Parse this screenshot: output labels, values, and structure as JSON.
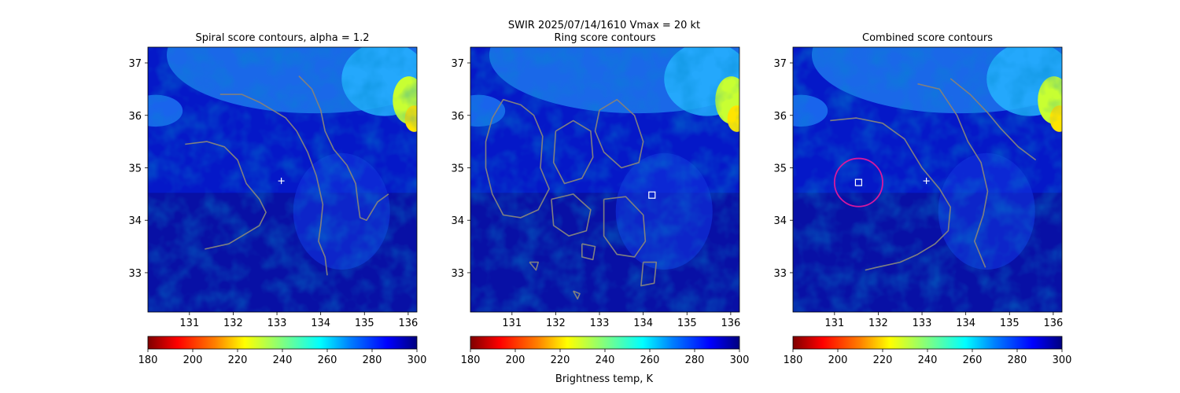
{
  "figure": {
    "suptitle_line1": "SWIR  2025/07/14/1610    Vmax = 20 kt",
    "colorbar_label": "Brightness temp, K"
  },
  "colors": {
    "contour": "#808080",
    "marker": "#ffffff",
    "circle": "#d6189e",
    "colormap": [
      "#7f0000",
      "#ff0000",
      "#ff8000",
      "#ffff00",
      "#80ff80",
      "#00ffff",
      "#0080ff",
      "#0000ff",
      "#00007f"
    ]
  },
  "chart_data": [
    {
      "type": "heatmap",
      "title": "Spiral score contours, alpha =  1.2",
      "xlabel": "",
      "ylabel": "",
      "xlim": [
        130.05,
        136.2
      ],
      "ylim": [
        32.25,
        37.3
      ],
      "xticks": [
        131,
        132,
        133,
        134,
        135,
        136
      ],
      "yticks": [
        33,
        34,
        35,
        36,
        37
      ],
      "colorbar": {
        "range": [
          180,
          300
        ],
        "ticks": [
          180,
          200,
          220,
          240,
          260,
          280,
          300
        ],
        "colormap": "jet_r",
        "label": ""
      },
      "markers": [
        {
          "type": "plus",
          "lon": 133.1,
          "lat": 34.75
        }
      ],
      "contours": [
        [
          [
            131.7,
            36.4
          ],
          [
            132.2,
            36.4
          ],
          [
            132.6,
            36.25
          ],
          [
            132.9,
            36.1
          ],
          [
            133.2,
            35.95
          ],
          [
            133.45,
            35.7
          ],
          [
            133.7,
            35.3
          ],
          [
            133.9,
            34.85
          ],
          [
            134.05,
            34.3
          ],
          [
            134.0,
            33.9
          ],
          [
            133.95,
            33.6
          ],
          [
            134.1,
            33.3
          ],
          [
            134.15,
            32.95
          ]
        ],
        [
          [
            133.5,
            36.75
          ],
          [
            133.8,
            36.5
          ],
          [
            134.0,
            36.1
          ],
          [
            134.1,
            35.7
          ],
          [
            134.3,
            35.35
          ],
          [
            134.6,
            35.05
          ],
          [
            134.8,
            34.7
          ],
          [
            134.85,
            34.35
          ],
          [
            134.9,
            34.05
          ],
          [
            135.05,
            34.0
          ],
          [
            135.3,
            34.35
          ],
          [
            135.55,
            34.5
          ]
        ],
        [
          [
            130.9,
            35.45
          ],
          [
            131.4,
            35.5
          ],
          [
            131.8,
            35.4
          ],
          [
            132.1,
            35.15
          ],
          [
            132.3,
            34.7
          ],
          [
            132.6,
            34.4
          ],
          [
            132.75,
            34.15
          ],
          [
            132.6,
            33.9
          ],
          [
            132.3,
            33.75
          ],
          [
            131.9,
            33.55
          ],
          [
            131.35,
            33.45
          ]
        ]
      ]
    },
    {
      "type": "heatmap",
      "title": "Ring score contours",
      "xlabel": "",
      "ylabel": "",
      "xlim": [
        130.05,
        136.2
      ],
      "ylim": [
        32.25,
        37.3
      ],
      "xticks": [
        131,
        132,
        133,
        134,
        135,
        136
      ],
      "yticks": [
        33,
        34,
        35,
        36,
        37
      ],
      "colorbar": {
        "range": [
          180,
          300
        ],
        "ticks": [
          180,
          200,
          220,
          240,
          260,
          280,
          300
        ],
        "colormap": "jet_r",
        "label": "Brightness temp, K"
      },
      "markers": [
        {
          "type": "square",
          "lon": 134.2,
          "lat": 34.48
        }
      ],
      "contours": [
        [
          [
            130.55,
            35.95
          ],
          [
            130.8,
            36.3
          ],
          [
            131.2,
            36.2
          ],
          [
            131.5,
            36.0
          ],
          [
            131.7,
            35.6
          ],
          [
            131.65,
            35.0
          ],
          [
            131.85,
            34.6
          ],
          [
            131.6,
            34.2
          ],
          [
            131.2,
            34.05
          ],
          [
            130.8,
            34.1
          ],
          [
            130.55,
            34.5
          ],
          [
            130.4,
            35.0
          ],
          [
            130.4,
            35.5
          ],
          [
            130.55,
            35.95
          ]
        ],
        [
          [
            132.0,
            35.7
          ],
          [
            132.4,
            35.9
          ],
          [
            132.8,
            35.7
          ],
          [
            132.85,
            35.2
          ],
          [
            132.6,
            34.8
          ],
          [
            132.2,
            34.7
          ],
          [
            131.95,
            35.1
          ],
          [
            132.0,
            35.7
          ]
        ],
        [
          [
            133.0,
            36.1
          ],
          [
            133.4,
            36.3
          ],
          [
            133.8,
            36.0
          ],
          [
            134.0,
            35.5
          ],
          [
            133.9,
            35.1
          ],
          [
            133.5,
            35.0
          ],
          [
            133.1,
            35.3
          ],
          [
            132.9,
            35.7
          ],
          [
            133.0,
            36.1
          ]
        ],
        [
          [
            133.1,
            34.4
          ],
          [
            133.6,
            34.45
          ],
          [
            134.0,
            34.1
          ],
          [
            134.05,
            33.6
          ],
          [
            133.8,
            33.3
          ],
          [
            133.4,
            33.35
          ],
          [
            133.1,
            33.7
          ],
          [
            133.1,
            34.4
          ]
        ],
        [
          [
            131.9,
            34.4
          ],
          [
            132.4,
            34.5
          ],
          [
            132.8,
            34.2
          ],
          [
            132.7,
            33.8
          ],
          [
            132.3,
            33.7
          ],
          [
            131.95,
            33.9
          ],
          [
            131.9,
            34.4
          ]
        ],
        [
          [
            134.0,
            33.2
          ],
          [
            134.3,
            33.2
          ],
          [
            134.25,
            32.8
          ],
          [
            133.95,
            32.75
          ],
          [
            134.0,
            33.2
          ]
        ],
        [
          [
            132.6,
            33.55
          ],
          [
            132.9,
            33.5
          ],
          [
            132.85,
            33.25
          ],
          [
            132.6,
            33.3
          ],
          [
            132.6,
            33.55
          ]
        ],
        [
          [
            131.4,
            33.2
          ],
          [
            131.6,
            33.2
          ],
          [
            131.55,
            33.05
          ],
          [
            131.4,
            33.2
          ]
        ],
        [
          [
            132.4,
            32.65
          ],
          [
            132.55,
            32.6
          ],
          [
            132.5,
            32.5
          ],
          [
            132.4,
            32.65
          ]
        ]
      ]
    },
    {
      "type": "heatmap",
      "title": "Combined score contours",
      "xlabel": "",
      "ylabel": "",
      "xlim": [
        130.05,
        136.2
      ],
      "ylim": [
        32.25,
        37.3
      ],
      "xticks": [
        131,
        132,
        133,
        134,
        135,
        136
      ],
      "yticks": [
        33,
        34,
        35,
        36,
        37
      ],
      "colorbar": {
        "range": [
          180,
          300
        ],
        "ticks": [
          180,
          200,
          220,
          240,
          260,
          280,
          300
        ],
        "colormap": "jet_r",
        "label": ""
      },
      "markers": [
        {
          "type": "plus",
          "lon": 133.1,
          "lat": 34.75
        },
        {
          "type": "square",
          "lon": 131.55,
          "lat": 34.72
        },
        {
          "type": "circle",
          "lon": 131.55,
          "lat": 34.72,
          "radius_deg": 0.55
        }
      ],
      "contours": [
        [
          [
            130.9,
            35.9
          ],
          [
            131.5,
            35.95
          ],
          [
            132.1,
            35.85
          ],
          [
            132.6,
            35.55
          ],
          [
            133.0,
            35.0
          ],
          [
            133.4,
            34.6
          ],
          [
            133.65,
            34.25
          ],
          [
            133.6,
            33.8
          ],
          [
            133.3,
            33.55
          ],
          [
            132.9,
            33.35
          ],
          [
            132.5,
            33.2
          ],
          [
            131.95,
            33.1
          ],
          [
            131.7,
            33.05
          ]
        ],
        [
          [
            132.9,
            36.6
          ],
          [
            133.4,
            36.5
          ],
          [
            133.8,
            36.0
          ],
          [
            134.05,
            35.5
          ],
          [
            134.35,
            35.1
          ],
          [
            134.5,
            34.55
          ],
          [
            134.4,
            34.1
          ],
          [
            134.2,
            33.6
          ],
          [
            134.35,
            33.3
          ],
          [
            134.45,
            33.1
          ]
        ],
        [
          [
            133.65,
            36.7
          ],
          [
            134.1,
            36.4
          ],
          [
            134.5,
            36.05
          ],
          [
            134.8,
            35.75
          ],
          [
            135.2,
            35.4
          ],
          [
            135.6,
            35.15
          ]
        ]
      ]
    }
  ]
}
